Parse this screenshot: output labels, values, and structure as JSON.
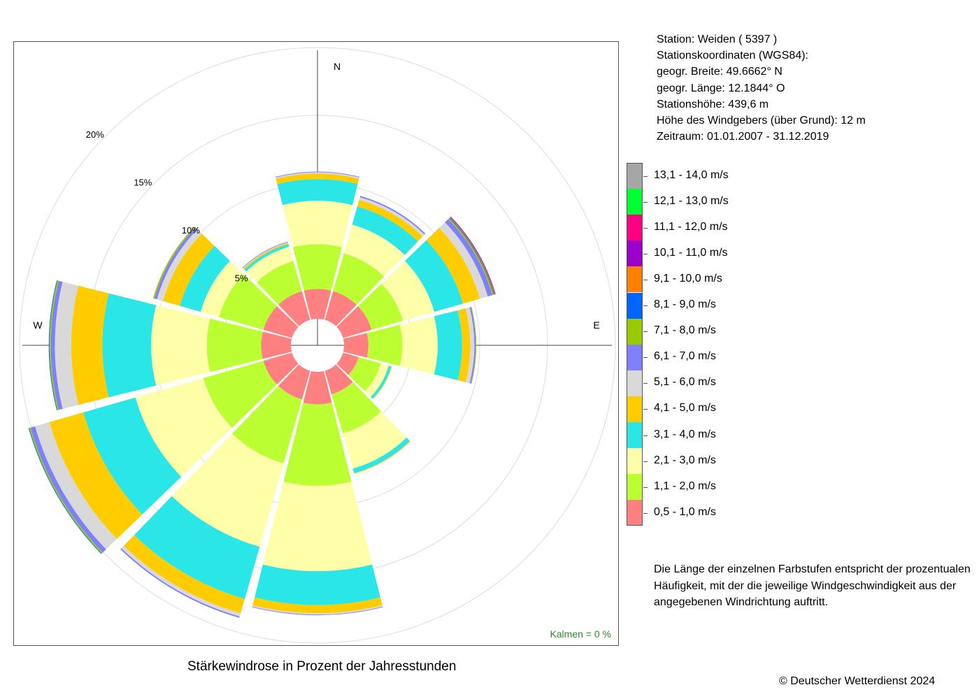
{
  "station": {
    "lines": [
      "Station:  Weiden  ( 5397 )",
      "Stationskoordinaten (WGS84):",
      "geogr. Breite: 49.6662° N",
      "geogr. Länge: 12.1844° O",
      "Stationshöhe: 439,6 m",
      "Höhe des Windgebers (über Grund): 12 m",
      "Zeitraum: 01.01.2007 - 31.12.2019"
    ]
  },
  "chart_title": "Stärkewindrose in Prozent der Jahresstunden",
  "calm_label": "Kalmen  =  0 %",
  "note": "Die Länge der einzelnen Farbstufen entspricht der prozentualen Häufigkeit, mit der die jeweilige Windgeschwindigkeit aus der angegebenen Windrichtung auftritt.",
  "copyright": "© Deutscher Wetterdienst  2024",
  "chart_data": {
    "type": "polar-stacked-bar",
    "title": "Stärkewindrose in Prozent der Jahresstunden",
    "unit": "%",
    "ring_values": [
      5,
      10,
      15,
      20
    ],
    "ring_labels": [
      "5%",
      "10%",
      "15%",
      "20%"
    ],
    "direction_labels": {
      "N": "N",
      "E": "E",
      "W": "W"
    },
    "directions_deg": [
      0,
      30,
      60,
      90,
      120,
      150,
      180,
      210,
      240,
      270,
      300,
      330
    ],
    "categories": [
      "0,5 - 1,0 m/s",
      "1,1 - 2,0 m/s",
      "2,1 - 3,0 m/s",
      "3,1 - 4,0 m/s",
      "4,1 - 5,0 m/s",
      "5,1 - 6,0 m/s",
      "6,1 - 7,0 m/s",
      "7,1 - 8,0 m/s",
      "8,1 - 9,0 m/s",
      "9,1 - 10,0 m/s",
      "10,1 - 11,0 m/s",
      "11,1 - 12,0 m/s",
      "12,1 - 13,0 m/s",
      "13,1 - 14,0 m/s"
    ],
    "colors": [
      "#ff8080",
      "#bbff33",
      "#ffffaa",
      "#2ae6e6",
      "#ffcc00",
      "#d9d9d9",
      "#8080ff",
      "#99cc00",
      "#0066ff",
      "#ff8000",
      "#9900cc",
      "#ff0080",
      "#00ff33",
      "#a6a6a6"
    ],
    "values": [
      [
        2.2,
        3.3,
        3.2,
        1.6,
        0.4,
        0.1,
        0.05,
        0,
        0,
        0,
        0,
        0,
        0,
        0
      ],
      [
        2.2,
        2.9,
        2.2,
        1.4,
        0.5,
        0.2,
        0.1,
        0,
        0,
        0,
        0,
        0,
        0,
        0
      ],
      [
        2.2,
        2.4,
        2.4,
        2.2,
        1.3,
        0.6,
        0.35,
        0.1,
        0.05,
        0.05,
        0.05,
        0,
        0,
        0
      ],
      [
        1.8,
        2.5,
        2.6,
        1.8,
        0.6,
        0.3,
        0.1,
        0.05,
        0,
        0,
        0,
        0,
        0,
        0
      ],
      [
        1.2,
        1.7,
        0.6,
        0.2,
        0.05,
        0,
        0,
        0,
        0,
        0,
        0,
        0,
        0,
        0
      ],
      [
        1.8,
        3.0,
        2.7,
        0.35,
        0.05,
        0,
        0,
        0,
        0,
        0,
        0,
        0,
        0,
        0
      ],
      [
        2.4,
        6.0,
        6.3,
        2.5,
        0.6,
        0.1,
        0.05,
        0,
        0,
        0,
        0,
        0,
        0,
        0
      ],
      [
        2.2,
        4.9,
        6.4,
        4.0,
        1.1,
        0.25,
        0.1,
        0,
        0,
        0,
        0,
        0,
        0,
        0
      ],
      [
        2.2,
        4.6,
        5.2,
        4.0,
        2.6,
        1.1,
        0.35,
        0.1,
        0.05,
        0,
        0,
        0,
        0,
        0
      ],
      [
        2.2,
        4.0,
        4.1,
        3.6,
        2.3,
        1.2,
        0.3,
        0.1,
        0.05,
        0,
        0,
        0,
        0,
        0
      ],
      [
        2.2,
        3.4,
        1.4,
        1.6,
        1.3,
        0.45,
        0.2,
        0.1,
        0,
        0,
        0,
        0,
        0,
        0
      ],
      [
        2.2,
        2.3,
        1.1,
        0.2,
        0.1,
        0.05,
        0.05,
        0,
        0,
        0,
        0,
        0,
        0,
        0
      ]
    ],
    "calm_percent": 0
  }
}
